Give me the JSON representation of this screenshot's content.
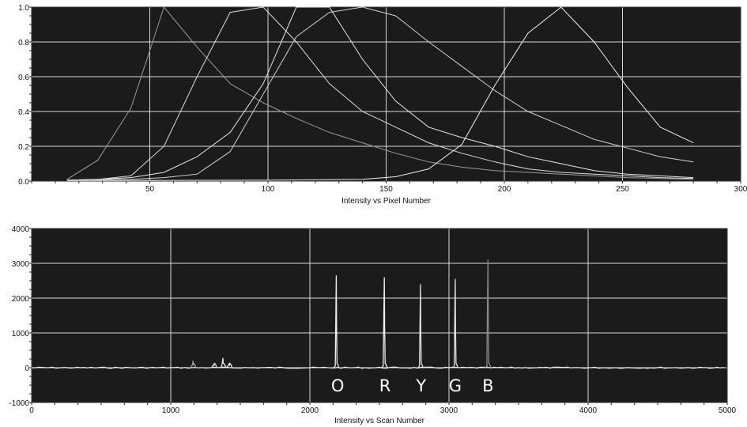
{
  "chart_data": [
    {
      "type": "line",
      "xlabel": "Intensity vs Pixel Number",
      "ylabel": "",
      "xlim": [
        0,
        300
      ],
      "ylim": [
        0,
        1.0
      ],
      "x_ticks": [
        "50",
        "100",
        "150",
        "200",
        "250",
        "300"
      ],
      "y_ticks": [
        "0.0",
        "0.2",
        "0.4",
        "0.6",
        "0.8",
        "1.0"
      ],
      "grid": true,
      "background": "#1b1b1b",
      "grid_color": "#d8d8d8",
      "series": [
        {
          "color": "#9a9a9a",
          "x": [
            15,
            28,
            42,
            50,
            56,
            70,
            84,
            98,
            112,
            126,
            140,
            154,
            168,
            182,
            196,
            210,
            224,
            238,
            252,
            266,
            280
          ],
          "y": [
            0.01,
            0.12,
            0.42,
            0.75,
            1.0,
            0.77,
            0.56,
            0.45,
            0.36,
            0.28,
            0.22,
            0.16,
            0.11,
            0.08,
            0.06,
            0.05,
            0.04,
            0.03,
            0.02,
            0.015,
            0.01
          ]
        },
        {
          "color": "#dcdcdc",
          "x": [
            15,
            28,
            42,
            56,
            70,
            84,
            98,
            112,
            126,
            140,
            154,
            168,
            182,
            196,
            210,
            224,
            238,
            252,
            266,
            280
          ],
          "y": [
            0.005,
            0.01,
            0.03,
            0.2,
            0.6,
            0.97,
            1.0,
            0.8,
            0.56,
            0.4,
            0.31,
            0.22,
            0.16,
            0.11,
            0.07,
            0.05,
            0.04,
            0.03,
            0.02,
            0.015
          ]
        },
        {
          "color": "#e6e6e6",
          "x": [
            15,
            28,
            42,
            56,
            70,
            84,
            98,
            112,
            126,
            140,
            154,
            168,
            182,
            196,
            210,
            224,
            238,
            252,
            266,
            280
          ],
          "y": [
            0.005,
            0.01,
            0.02,
            0.05,
            0.14,
            0.28,
            0.56,
            1.0,
            1.0,
            0.7,
            0.46,
            0.31,
            0.25,
            0.2,
            0.14,
            0.1,
            0.06,
            0.04,
            0.03,
            0.02
          ]
        },
        {
          "color": "#cfcfcf",
          "x": [
            15,
            28,
            42,
            56,
            70,
            84,
            98,
            112,
            126,
            140,
            154,
            168,
            182,
            196,
            210,
            224,
            238,
            252,
            266,
            280
          ],
          "y": [
            0.005,
            0.008,
            0.01,
            0.02,
            0.04,
            0.17,
            0.5,
            0.83,
            0.97,
            1.0,
            0.95,
            0.8,
            0.66,
            0.52,
            0.4,
            0.32,
            0.24,
            0.19,
            0.14,
            0.11
          ]
        },
        {
          "color": "#f0f0f0",
          "x": [
            15,
            56,
            98,
            140,
            154,
            168,
            182,
            196,
            210,
            224,
            238,
            252,
            266,
            280
          ],
          "y": [
            0.003,
            0.004,
            0.005,
            0.01,
            0.025,
            0.07,
            0.21,
            0.55,
            0.85,
            1.0,
            0.8,
            0.54,
            0.31,
            0.22
          ]
        }
      ]
    },
    {
      "type": "line",
      "xlabel": "Intensity vs Scan Number",
      "ylabel": "",
      "xlim": [
        0,
        5000
      ],
      "ylim": [
        -1000,
        4000
      ],
      "x_ticks": [
        "0",
        "1000",
        "2000",
        "3000",
        "4000",
        "5000"
      ],
      "y_ticks": [
        "-1000",
        "0",
        "1000",
        "2000",
        "3000",
        "4000"
      ],
      "grid": true,
      "background": "#1b1b1b",
      "grid_color": "#d8d8d8",
      "baseline": 0,
      "peaks": [
        {
          "x": 1160,
          "height": 200,
          "width": 8,
          "color": "#9a9a9a"
        },
        {
          "x": 1310,
          "height": 120,
          "width": 8,
          "color": "#cfcfcf"
        },
        {
          "x": 1375,
          "height": 280,
          "width": 8,
          "color": "#e6e6e6"
        },
        {
          "x": 1420,
          "height": 130,
          "width": 8,
          "color": "#e6e6e6"
        },
        {
          "x": 2190,
          "height": 2650,
          "width": 7,
          "color": "#f0f0f0"
        },
        {
          "x": 2535,
          "height": 2600,
          "width": 8,
          "color": "#f0f0f0"
        },
        {
          "x": 2795,
          "height": 2400,
          "width": 7,
          "color": "#e6e6e6"
        },
        {
          "x": 3045,
          "height": 2550,
          "width": 7,
          "color": "#e6e6e6"
        },
        {
          "x": 3280,
          "height": 3100,
          "width": 8,
          "color": "#8c8c8c"
        }
      ],
      "annotations": [
        {
          "text": "O",
          "x": 2200
        },
        {
          "text": "R",
          "x": 2540
        },
        {
          "text": "Y",
          "x": 2800
        },
        {
          "text": "G",
          "x": 3045
        },
        {
          "text": "B",
          "x": 3280
        }
      ]
    }
  ]
}
